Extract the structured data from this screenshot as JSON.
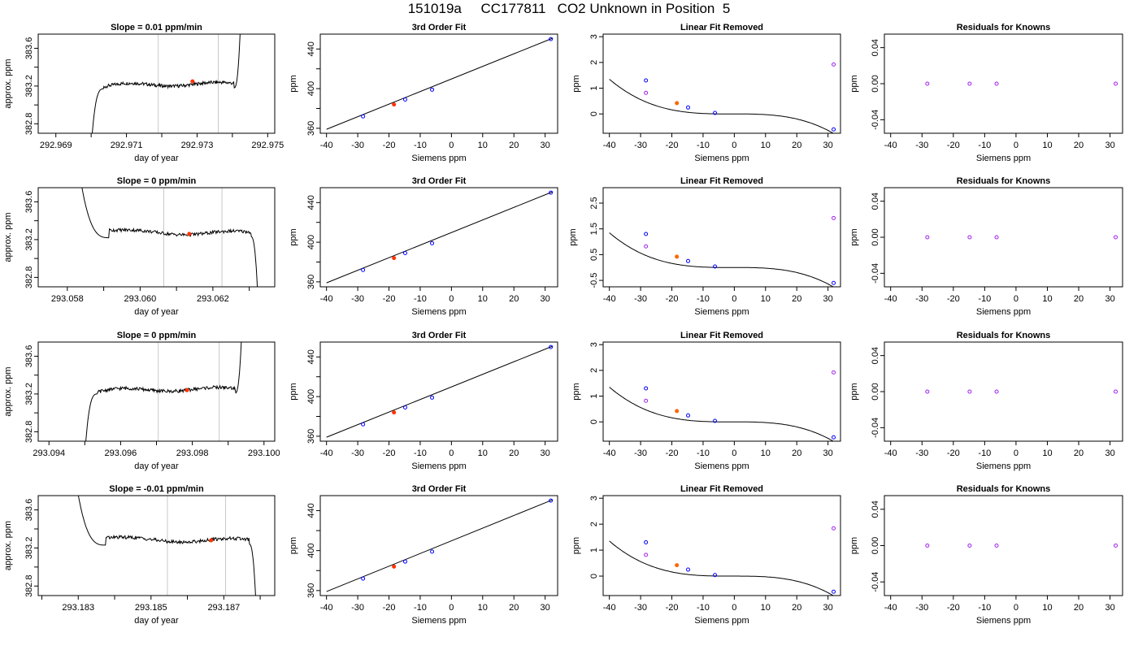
{
  "title": "151019a     CC177811   CO2 Unknown in Position  5",
  "colors": {
    "line": "#000000",
    "window": "#c8c8c8",
    "unknown_point": "#ff3300",
    "known_point": "#0000ff",
    "removed_point": "#a020f0",
    "fit_point": "#ff6600"
  },
  "chart_data": [
    {
      "row": 1,
      "type": "line",
      "title": "Slope =  0.01  ppm/min",
      "xlabel": "day of year",
      "ylabel": "approx. ppm",
      "xlim": [
        292.9685,
        292.9752
      ],
      "ylim": [
        382.7,
        383.75
      ],
      "x_ticks": [
        "292.969",
        "292.971",
        "292.973",
        "292.975"
      ],
      "x_tick_values": [
        292.969,
        292.971,
        292.973,
        292.975
      ],
      "x_minor_ticks": [
        292.97,
        292.972,
        292.974
      ],
      "y_ticks": [
        "382.8",
        "383.2",
        "383.6"
      ],
      "y_tick_values": [
        382.8,
        383.2,
        383.6
      ],
      "shape": "rise",
      "start": 292.97,
      "plateau_start": 292.97035,
      "end": 292.97425,
      "end_turn": 292.97405,
      "plateau": 383.22,
      "window": [
        292.9719,
        292.9736
      ],
      "marker": {
        "x": 292.97287,
        "y": 383.25
      }
    },
    {
      "row": 1,
      "type": "line",
      "title": "3rd Order Fit",
      "xlabel": "Siemens ppm",
      "ylabel": "ppm",
      "xlim": [
        -42,
        34
      ],
      "ylim": [
        355,
        455
      ],
      "x_ticks": [
        "-40",
        "-30",
        "-20",
        "-10",
        "0",
        "10",
        "20",
        "30"
      ],
      "x_tick_values": [
        -40,
        -30,
        -20,
        -10,
        0,
        10,
        20,
        30
      ],
      "y_ticks": [
        "360",
        "400",
        "440"
      ],
      "y_tick_values": [
        360,
        400,
        440
      ],
      "line": {
        "x": [
          -40,
          32.5
        ],
        "y": [
          359,
          451
        ]
      },
      "known_points": {
        "x": [
          -28.3,
          -14.8,
          -6.2,
          31.8
        ],
        "y": [
          372,
          389,
          399,
          450
        ]
      },
      "unknown_point": {
        "x": -18.4,
        "y": 384
      }
    },
    {
      "row": 1,
      "type": "line",
      "title": "Linear Fit Removed",
      "xlabel": "Siemens ppm",
      "ylabel": "ppm",
      "xlim": [
        -42,
        34
      ],
      "ylim": [
        -0.75,
        3.1
      ],
      "x_ticks": [
        "-40",
        "-30",
        "-20",
        "-10",
        "0",
        "10",
        "20",
        "30"
      ],
      "x_tick_values": [
        -40,
        -30,
        -20,
        -10,
        0,
        10,
        20,
        30
      ],
      "y_ticks": [
        "0",
        "1",
        "2",
        "3"
      ],
      "y_tick_values": [
        0,
        1,
        2,
        3
      ],
      "curve": {
        "x_range": [
          -40,
          33
        ],
        "coeffs": [
          0.002,
          -4.5e-05,
          -2.22e-05
        ]
      },
      "known_points": {
        "x": [
          -28.3,
          -14.8,
          -6.2,
          31.8
        ],
        "y": [
          1.3,
          0.25,
          0.04,
          -0.6
        ]
      },
      "removed_points": {
        "x": [
          -28.3,
          31.8
        ],
        "y": [
          0.82,
          1.92
        ]
      },
      "fit_point": {
        "x": -18.4,
        "y": 0.42
      }
    },
    {
      "row": 1,
      "type": "scatter",
      "title": "Residuals for Knowns",
      "xlabel": "Siemens ppm",
      "ylabel": "ppm",
      "xlim": [
        -42,
        34
      ],
      "ylim": [
        -0.055,
        0.055
      ],
      "x_ticks": [
        "-40",
        "-30",
        "-20",
        "-10",
        "0",
        "10",
        "20",
        "30"
      ],
      "x_tick_values": [
        -40,
        -30,
        -20,
        -10,
        0,
        10,
        20,
        30
      ],
      "y_ticks": [
        "-0.04",
        "0.00",
        "0.04"
      ],
      "y_tick_values": [
        -0.04,
        0.0,
        0.04
      ],
      "points": {
        "x": [
          -28.3,
          -14.8,
          -6.2,
          31.8
        ],
        "y": [
          0,
          0,
          0,
          0
        ]
      }
    },
    {
      "row": 2,
      "type": "line",
      "title": "Slope =  0  ppm/min",
      "xlabel": "day of year",
      "ylabel": "approx. ppm",
      "xlim": [
        293.0572,
        293.0637
      ],
      "ylim": [
        382.7,
        383.75
      ],
      "x_ticks": [
        "293.058",
        "293.060",
        "293.062"
      ],
      "x_tick_values": [
        293.058,
        293.06,
        293.062
      ],
      "x_minor_ticks": [
        293.059,
        293.061,
        293.063
      ],
      "y_ticks": [
        "382.8",
        "383.2",
        "383.6"
      ],
      "y_tick_values": [
        382.8,
        383.2,
        383.6
      ],
      "shape": "fall",
      "start": 293.0583,
      "plateau_start": 293.05915,
      "end": 293.06325,
      "end_turn": 293.06305,
      "plateau": 383.27,
      "window": [
        293.06065,
        293.06225
      ],
      "marker": {
        "x": 293.06135,
        "y": 383.26
      }
    },
    {
      "row": 2,
      "type": "line",
      "title": "3rd Order Fit",
      "xlabel": "Siemens ppm",
      "ylabel": "ppm",
      "xlim": [
        -42,
        34
      ],
      "ylim": [
        355,
        455
      ],
      "x_ticks": [
        "-40",
        "-30",
        "-20",
        "-10",
        "0",
        "10",
        "20",
        "30"
      ],
      "x_tick_values": [
        -40,
        -30,
        -20,
        -10,
        0,
        10,
        20,
        30
      ],
      "y_ticks": [
        "360",
        "400",
        "440"
      ],
      "y_tick_values": [
        360,
        400,
        440
      ],
      "line": {
        "x": [
          -40,
          32.5
        ],
        "y": [
          359,
          451
        ]
      },
      "known_points": {
        "x": [
          -28.3,
          -14.8,
          -6.2,
          31.8
        ],
        "y": [
          372,
          389,
          399,
          450
        ]
      },
      "unknown_point": {
        "x": -18.4,
        "y": 384
      }
    },
    {
      "row": 2,
      "type": "line",
      "title": "Linear Fit Removed",
      "xlabel": "Siemens ppm",
      "ylabel": "ppm",
      "xlim": [
        -42,
        34
      ],
      "ylim": [
        -0.75,
        3.1
      ],
      "x_ticks": [
        "-40",
        "-30",
        "-20",
        "-10",
        "0",
        "10",
        "20",
        "30"
      ],
      "x_tick_values": [
        -40,
        -30,
        -20,
        -10,
        0,
        10,
        20,
        30
      ],
      "y_ticks": [
        "-0.5",
        "0.5",
        "1.5",
        "2.5"
      ],
      "y_tick_values": [
        -0.5,
        0.5,
        1.5,
        2.5
      ],
      "curve": {
        "x_range": [
          -40,
          33
        ],
        "coeffs": [
          0.002,
          -4.5e-05,
          -2.22e-05
        ]
      },
      "known_points": {
        "x": [
          -28.3,
          -14.8,
          -6.2,
          31.8
        ],
        "y": [
          1.3,
          0.25,
          0.04,
          -0.6
        ]
      },
      "removed_points": {
        "x": [
          -28.3,
          31.8
        ],
        "y": [
          0.82,
          1.92
        ]
      },
      "fit_point": {
        "x": -18.4,
        "y": 0.42
      }
    },
    {
      "row": 2,
      "type": "scatter",
      "title": "Residuals for Knowns",
      "xlabel": "Siemens ppm",
      "ylabel": "ppm",
      "xlim": [
        -42,
        34
      ],
      "ylim": [
        -0.055,
        0.055
      ],
      "x_ticks": [
        "-40",
        "-30",
        "-20",
        "-10",
        "0",
        "10",
        "20",
        "30"
      ],
      "x_tick_values": [
        -40,
        -30,
        -20,
        -10,
        0,
        10,
        20,
        30
      ],
      "y_ticks": [
        "-0.04",
        "0.00",
        "0.04"
      ],
      "y_tick_values": [
        -0.04,
        0.0,
        0.04
      ],
      "points": {
        "x": [
          -28.3,
          -14.8,
          -6.2,
          31.8
        ],
        "y": [
          0,
          0,
          0,
          0
        ]
      }
    },
    {
      "row": 3,
      "type": "line",
      "title": "Slope =  0  ppm/min",
      "xlabel": "day of year",
      "ylabel": "approx. ppm",
      "xlim": [
        293.0937,
        293.1003
      ],
      "ylim": [
        382.7,
        383.75
      ],
      "x_ticks": [
        "293.094",
        "293.096",
        "293.098",
        "293.100"
      ],
      "x_tick_values": [
        293.094,
        293.096,
        293.098,
        293.1
      ],
      "x_minor_ticks": [
        293.095,
        293.097,
        293.099
      ],
      "y_ticks": [
        "382.8",
        "383.2",
        "383.6"
      ],
      "y_tick_values": [
        382.8,
        383.2,
        383.6
      ],
      "shape": "rise",
      "start": 293.095,
      "plateau_start": 293.09535,
      "end": 293.0994,
      "end_turn": 293.0992,
      "plateau": 383.25,
      "window": [
        293.09705,
        293.09875
      ],
      "marker": {
        "x": 293.09785,
        "y": 383.24
      }
    },
    {
      "row": 3,
      "type": "line",
      "title": "3rd Order Fit",
      "xlabel": "Siemens ppm",
      "ylabel": "ppm",
      "xlim": [
        -42,
        34
      ],
      "ylim": [
        355,
        455
      ],
      "x_ticks": [
        "-40",
        "-30",
        "-20",
        "-10",
        "0",
        "10",
        "20",
        "30"
      ],
      "x_tick_values": [
        -40,
        -30,
        -20,
        -10,
        0,
        10,
        20,
        30
      ],
      "y_ticks": [
        "360",
        "400",
        "440"
      ],
      "y_tick_values": [
        360,
        400,
        440
      ],
      "line": {
        "x": [
          -40,
          32.5
        ],
        "y": [
          359,
          451
        ]
      },
      "known_points": {
        "x": [
          -28.3,
          -14.8,
          -6.2,
          31.8
        ],
        "y": [
          372,
          389,
          399,
          450
        ]
      },
      "unknown_point": {
        "x": -18.4,
        "y": 384
      }
    },
    {
      "row": 3,
      "type": "line",
      "title": "Linear Fit Removed",
      "xlabel": "Siemens ppm",
      "ylabel": "ppm",
      "xlim": [
        -42,
        34
      ],
      "ylim": [
        -0.75,
        3.1
      ],
      "x_ticks": [
        "-40",
        "-30",
        "-20",
        "-10",
        "0",
        "10",
        "20",
        "30"
      ],
      "x_tick_values": [
        -40,
        -30,
        -20,
        -10,
        0,
        10,
        20,
        30
      ],
      "y_ticks": [
        "0",
        "1",
        "2",
        "3"
      ],
      "y_tick_values": [
        0,
        1,
        2,
        3
      ],
      "curve": {
        "x_range": [
          -40,
          33
        ],
        "coeffs": [
          0.002,
          -4.5e-05,
          -2.22e-05
        ]
      },
      "known_points": {
        "x": [
          -28.3,
          -14.8,
          -6.2,
          31.8
        ],
        "y": [
          1.3,
          0.25,
          0.04,
          -0.6
        ]
      },
      "removed_points": {
        "x": [
          -28.3,
          31.8
        ],
        "y": [
          0.82,
          1.92
        ]
      },
      "fit_point": {
        "x": -18.4,
        "y": 0.42
      }
    },
    {
      "row": 3,
      "type": "scatter",
      "title": "Residuals for Knowns",
      "xlabel": "Siemens ppm",
      "ylabel": "ppm",
      "xlim": [
        -42,
        34
      ],
      "ylim": [
        -0.055,
        0.055
      ],
      "x_ticks": [
        "-40",
        "-30",
        "-20",
        "-10",
        "0",
        "10",
        "20",
        "30"
      ],
      "x_tick_values": [
        -40,
        -30,
        -20,
        -10,
        0,
        10,
        20,
        30
      ],
      "y_ticks": [
        "-0.04",
        "0.00",
        "0.04"
      ],
      "y_tick_values": [
        -0.04,
        0.0,
        0.04
      ],
      "points": {
        "x": [
          -28.3,
          -14.8,
          -6.2,
          31.8
        ],
        "y": [
          0,
          0,
          0,
          0
        ]
      }
    },
    {
      "row": 4,
      "type": "line",
      "title": "Slope =  -0.01  ppm/min",
      "xlabel": "day of year",
      "ylabel": "approx. ppm",
      "xlim": [
        293.1819,
        293.1884
      ],
      "ylim": [
        382.7,
        383.75
      ],
      "x_ticks": [
        "293.183",
        "293.185",
        "293.187"
      ],
      "x_tick_values": [
        293.183,
        293.185,
        293.187
      ],
      "x_minor_ticks": [
        293.182,
        293.184,
        293.186,
        293.188
      ],
      "y_ticks": [
        "382.8",
        "383.2",
        "383.6"
      ],
      "y_tick_values": [
        382.8,
        383.2,
        383.6
      ],
      "shape": "fall",
      "start": 293.1829,
      "plateau_start": 293.18375,
      "end": 293.1879,
      "end_turn": 293.1877,
      "plateau": 383.28,
      "window": [
        293.18545,
        293.18705
      ],
      "marker": {
        "x": 293.18665,
        "y": 383.28
      }
    },
    {
      "row": 4,
      "type": "line",
      "title": "3rd Order Fit",
      "xlabel": "Siemens ppm",
      "ylabel": "ppm",
      "xlim": [
        -42,
        34
      ],
      "ylim": [
        355,
        455
      ],
      "x_ticks": [
        "-40",
        "-30",
        "-20",
        "-10",
        "0",
        "10",
        "20",
        "30"
      ],
      "x_tick_values": [
        -40,
        -30,
        -20,
        -10,
        0,
        10,
        20,
        30
      ],
      "y_ticks": [
        "360",
        "400",
        "440"
      ],
      "y_tick_values": [
        360,
        400,
        440
      ],
      "line": {
        "x": [
          -40,
          32.5
        ],
        "y": [
          359,
          451
        ]
      },
      "known_points": {
        "x": [
          -28.3,
          -14.8,
          -6.2,
          31.8
        ],
        "y": [
          372,
          389,
          399,
          450
        ]
      },
      "unknown_point": {
        "x": -18.4,
        "y": 384
      }
    },
    {
      "row": 4,
      "type": "line",
      "title": "Linear Fit Removed",
      "xlabel": "Siemens ppm",
      "ylabel": "ppm",
      "xlim": [
        -42,
        34
      ],
      "ylim": [
        -0.75,
        3.1
      ],
      "x_ticks": [
        "-40",
        "-30",
        "-20",
        "-10",
        "0",
        "10",
        "20",
        "30"
      ],
      "x_tick_values": [
        -40,
        -30,
        -20,
        -10,
        0,
        10,
        20,
        30
      ],
      "y_ticks": [
        "0",
        "1",
        "2",
        "3"
      ],
      "y_tick_values": [
        0,
        1,
        2,
        3
      ],
      "curve": {
        "x_range": [
          -40,
          33
        ],
        "coeffs": [
          0.002,
          -4.5e-05,
          -2.22e-05
        ]
      },
      "known_points": {
        "x": [
          -28.3,
          -14.8,
          -6.2,
          31.8
        ],
        "y": [
          1.3,
          0.25,
          0.04,
          -0.6
        ]
      },
      "removed_points": {
        "x": [
          -28.3,
          31.8
        ],
        "y": [
          0.82,
          1.84
        ]
      },
      "fit_point": {
        "x": -18.4,
        "y": 0.42
      }
    },
    {
      "row": 4,
      "type": "scatter",
      "title": "Residuals for Knowns",
      "xlabel": "Siemens ppm",
      "ylabel": "ppm",
      "xlim": [
        -42,
        34
      ],
      "ylim": [
        -0.055,
        0.055
      ],
      "x_ticks": [
        "-40",
        "-30",
        "-20",
        "-10",
        "0",
        "10",
        "20",
        "30"
      ],
      "x_tick_values": [
        -40,
        -30,
        -20,
        -10,
        0,
        10,
        20,
        30
      ],
      "y_ticks": [
        "-0.04",
        "0.00",
        "0.04"
      ],
      "y_tick_values": [
        -0.04,
        0.0,
        0.04
      ],
      "points": {
        "x": [
          -28.3,
          -14.8,
          -6.2,
          31.8
        ],
        "y": [
          0,
          0,
          0,
          0
        ]
      }
    }
  ]
}
